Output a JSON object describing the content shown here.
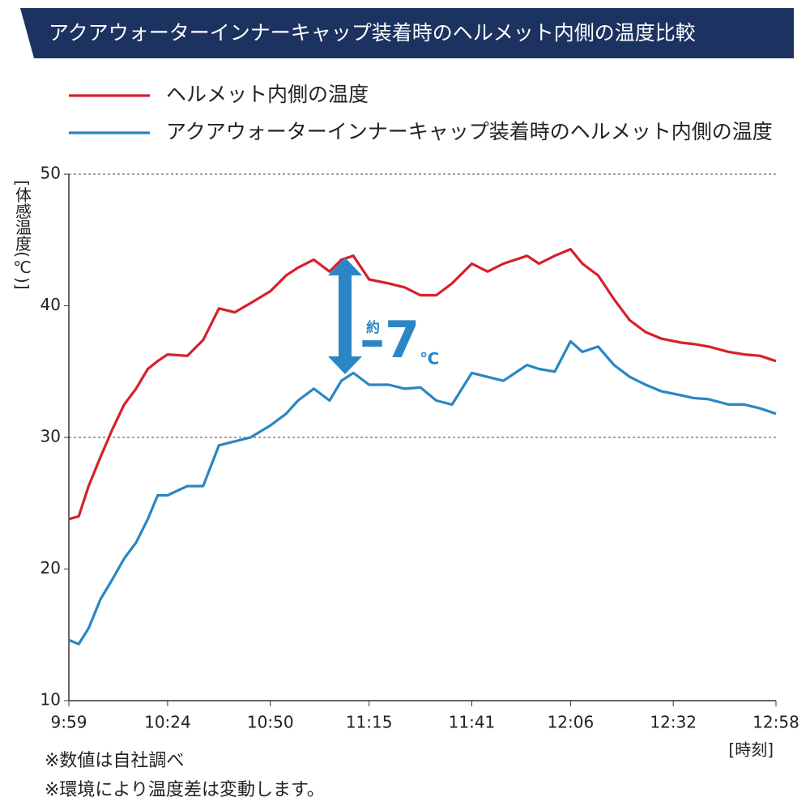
{
  "chart_data": {
    "type": "line",
    "title": "アクアウォーターインナーキャップ装着時のヘルメット内側の温度比較",
    "y_label": "[体感温度(℃)]",
    "x_label": "[時刻]",
    "notes": [
      "※数値は自社調べ",
      "※環境により温度差は変動します。"
    ],
    "annotation": {
      "prefix": "約",
      "value": "–7",
      "unit": "℃"
    },
    "x": [
      599,
      601.5,
      604,
      607,
      610,
      613,
      616,
      619,
      621.5,
      624,
      629,
      633,
      637,
      641,
      645,
      650,
      654,
      657,
      661,
      665,
      668,
      671,
      675,
      680,
      684,
      688,
      692,
      696,
      701,
      705,
      709,
      715,
      718,
      722,
      726,
      729,
      733,
      737,
      741,
      745,
      749,
      754,
      757,
      761,
      766,
      770,
      774,
      778
    ],
    "series": [
      {
        "name": "ヘルメット内側の温度",
        "color": "#d7202a",
        "values": [
          23.8,
          24.0,
          26.3,
          28.5,
          30.6,
          32.5,
          33.7,
          35.2,
          35.8,
          36.3,
          36.2,
          37.4,
          39.8,
          39.5,
          40.2,
          41.1,
          42.3,
          42.9,
          43.5,
          42.6,
          43.5,
          43.8,
          42.0,
          41.7,
          41.4,
          40.8,
          40.8,
          41.7,
          43.2,
          42.6,
          43.2,
          43.8,
          43.2,
          43.8,
          44.3,
          43.2,
          42.3,
          40.5,
          38.9,
          38.0,
          37.5,
          37.2,
          37.1,
          36.9,
          36.5,
          36.3,
          36.2,
          35.8
        ]
      },
      {
        "name": "アクアウォーターインナーキャップ装着時のヘルメット内側の温度",
        "color": "#2a86c4",
        "values": [
          14.6,
          14.3,
          15.5,
          17.7,
          19.2,
          20.8,
          22.0,
          23.8,
          25.6,
          25.6,
          26.3,
          26.3,
          29.4,
          29.7,
          30.0,
          30.9,
          31.8,
          32.8,
          33.7,
          32.8,
          34.3,
          34.9,
          34.0,
          34.0,
          33.7,
          33.8,
          32.8,
          32.5,
          34.9,
          34.6,
          34.3,
          35.5,
          35.2,
          35.0,
          37.3,
          36.5,
          36.9,
          35.5,
          34.6,
          34.0,
          33.5,
          33.2,
          33.0,
          32.9,
          32.5,
          32.5,
          32.2,
          31.8
        ]
      }
    ],
    "xlim": [
      599,
      778
    ],
    "xticks": [
      {
        "value": 599,
        "label": "9:59"
      },
      {
        "value": 624,
        "label": "10:24"
      },
      {
        "value": 650,
        "label": "10:50"
      },
      {
        "value": 675,
        "label": "11:15"
      },
      {
        "value": 701,
        "label": "11:41"
      },
      {
        "value": 726,
        "label": "12:06"
      },
      {
        "value": 752,
        "label": "12:32"
      },
      {
        "value": 778,
        "label": "12:58"
      }
    ],
    "ylim": [
      10,
      50
    ],
    "yticks": [
      10,
      20,
      30,
      40,
      50
    ],
    "grid_lines": [
      30,
      50
    ]
  }
}
